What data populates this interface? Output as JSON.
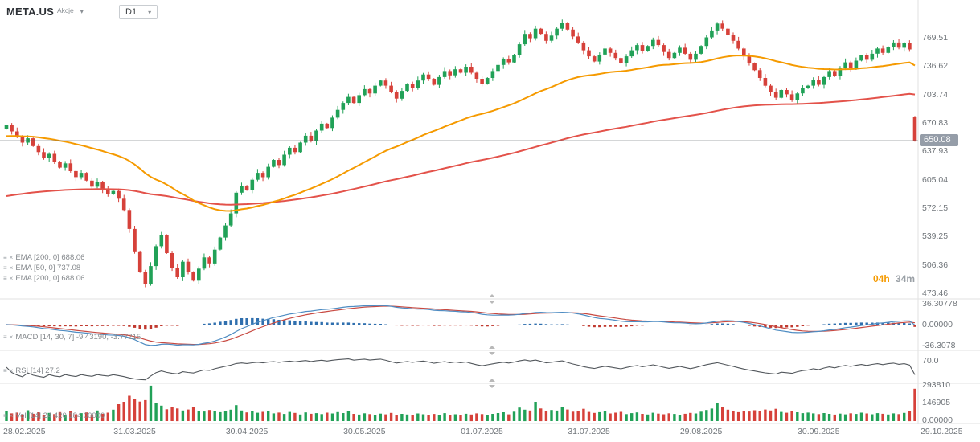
{
  "header": {
    "symbol": "META.US",
    "market_label": "Akcje",
    "timeframe": "D1"
  },
  "countdown": {
    "hours": "04h",
    "minutes": "34m"
  },
  "current_price_label": "650.08",
  "legends": {
    "ema": [
      "EMA [200, 0] 688.06",
      "EMA [50, 0] 737.08",
      "EMA [200, 0] 688.06"
    ],
    "macd": "MACD [14, 30, 7] -9.43190, -3.77215",
    "rsi": "RSI [14] 27.2",
    "volume": "Vol [14] 24 420 184.00000"
  },
  "chart_data": {
    "type": "candlestick-with-indicators",
    "symbol": "META.US",
    "timeframe": "D1",
    "current_price": 650.08,
    "price_axis_labels": [
      "769.51",
      "736.62",
      "703.74",
      "670.83",
      "637.93",
      "605.04",
      "572.15",
      "539.25",
      "506.36",
      "473.46"
    ],
    "macd_axis_labels": [
      {
        "text": "36.30778",
        "v": 36.30778
      },
      {
        "text": "0.00000",
        "v": 0
      },
      {
        "text": "-36.3078",
        "v": -36.3078
      }
    ],
    "rsi_axis_labels": [
      {
        "text": "70.0",
        "v": 70
      }
    ],
    "volume_axis_labels": [
      {
        "text": "293810",
        "v": 293810
      },
      {
        "text": "146905",
        "v": 146905
      },
      {
        "text": "0.00000",
        "v": 0
      }
    ],
    "x_ticks": [
      {
        "i": 0,
        "label": "28.02.2025",
        "align": "left"
      },
      {
        "i": 24,
        "label": "31.03.2025"
      },
      {
        "i": 45,
        "label": "30.04.2025"
      },
      {
        "i": 67,
        "label": "30.05.2025"
      },
      {
        "i": 89,
        "label": "01.07.2025"
      },
      {
        "i": 109,
        "label": "31.07.2025"
      },
      {
        "i": 130,
        "label": "29.08.2025"
      },
      {
        "i": 152,
        "label": "30.09.2025"
      },
      {
        "i": 170,
        "label": "29.10.2025",
        "align": "right-edge"
      }
    ],
    "first_open": 664,
    "open_overrides": [
      [
        170,
        678
      ]
    ],
    "closes": [
      668,
      661,
      655,
      648,
      653,
      644,
      637,
      630,
      635,
      626,
      619,
      624,
      615,
      608,
      613,
      604,
      597,
      602,
      594,
      588,
      592,
      583,
      570,
      548,
      522,
      498,
      484,
      505,
      528,
      541,
      520,
      503,
      492,
      510,
      498,
      488,
      502,
      515,
      508,
      524,
      538,
      552,
      566,
      590,
      598,
      593,
      605,
      613,
      608,
      620,
      628,
      622,
      634,
      642,
      637,
      648,
      656,
      650,
      662,
      670,
      665,
      677,
      686,
      694,
      701,
      694,
      703,
      710,
      705,
      714,
      720,
      714,
      707,
      699,
      708,
      716,
      711,
      720,
      727,
      722,
      715,
      724,
      731,
      726,
      733,
      729,
      736,
      729,
      722,
      716,
      723,
      731,
      738,
      745,
      741,
      750,
      762,
      774,
      769,
      780,
      774,
      766,
      772,
      780,
      787,
      779,
      771,
      764,
      755,
      748,
      742,
      750,
      757,
      752,
      746,
      740,
      748,
      755,
      761,
      754,
      760,
      767,
      761,
      753,
      746,
      752,
      758,
      751,
      744,
      751,
      760,
      770,
      778,
      786,
      780,
      773,
      766,
      757,
      748,
      740,
      732,
      723,
      714,
      707,
      700,
      709,
      704,
      697,
      705,
      711,
      714,
      721,
      715,
      724,
      731,
      725,
      734,
      741,
      735,
      743,
      749,
      744,
      751,
      757,
      752,
      759,
      764,
      758,
      763,
      756,
      650.08
    ],
    "volumes": [
      82000,
      64000,
      71000,
      55000,
      90000,
      61000,
      73000,
      52000,
      68000,
      58000,
      75000,
      49000,
      83000,
      57000,
      66000,
      72000,
      54000,
      88000,
      61000,
      70000,
      95000,
      140000,
      160000,
      210000,
      185000,
      162000,
      174000,
      293810,
      150000,
      128000,
      98000,
      120000,
      105000,
      88000,
      96000,
      115000,
      84000,
      79000,
      92000,
      86000,
      74000,
      81000,
      95000,
      132000,
      88000,
      72000,
      80000,
      69000,
      77000,
      85000,
      64000,
      71000,
      59000,
      76000,
      68000,
      55000,
      72000,
      61000,
      66000,
      58000,
      70000,
      63000,
      75000,
      67000,
      82000,
      60000,
      54000,
      65000,
      58000,
      49000,
      62000,
      56000,
      68000,
      52000,
      60000,
      55000,
      48000,
      63000,
      57000,
      51000,
      59000,
      53000,
      66000,
      49000,
      57000,
      52000,
      61000,
      55000,
      64000,
      58000,
      52000,
      60000,
      67000,
      73000,
      56000,
      78000,
      112000,
      95000,
      88000,
      160000,
      105000,
      84000,
      92000,
      87000,
      118000,
      96000,
      78000,
      85000,
      102000,
      76000,
      68000,
      74000,
      82000,
      63000,
      70000,
      77000,
      58000,
      66000,
      72000,
      60000,
      55000,
      69000,
      62000,
      57000,
      65000,
      59000,
      52000,
      61000,
      68000,
      63000,
      78000,
      92000,
      104000,
      148000,
      120000,
      95000,
      82000,
      74000,
      86000,
      79000,
      90000,
      83000,
      96000,
      88000,
      102000,
      76000,
      69000,
      81000,
      73000,
      66000,
      71000,
      64000,
      58000,
      67000,
      60000,
      54000,
      62000,
      56000,
      65000,
      59000,
      70000,
      63000,
      57000,
      66000,
      61000,
      55000,
      64000,
      58000,
      68000,
      85000,
      268000
    ],
    "indicators": {
      "ema": [
        {
          "period": 200,
          "value": 688.06
        },
        {
          "period": 50,
          "value": 737.08
        },
        {
          "period": 200,
          "value": 688.06
        }
      ],
      "macd": {
        "params": [
          14,
          30,
          7
        ],
        "value": -9.4319,
        "signal": -3.77215
      },
      "rsi": {
        "period": 14,
        "value": 27.2
      }
    },
    "colors": {
      "up": "#21a157",
      "down": "#d6413a",
      "ema50": "#f59a00",
      "ema200": "#e3524a",
      "macd_line": "#4e8cc2",
      "macd_signal": "#c84a42",
      "hist_pos": "#2f6fae",
      "hist_neg": "#c0392f",
      "rsi": "#52575c",
      "current_price_line": "#555a60",
      "badge_bg": "#959da8"
    }
  }
}
